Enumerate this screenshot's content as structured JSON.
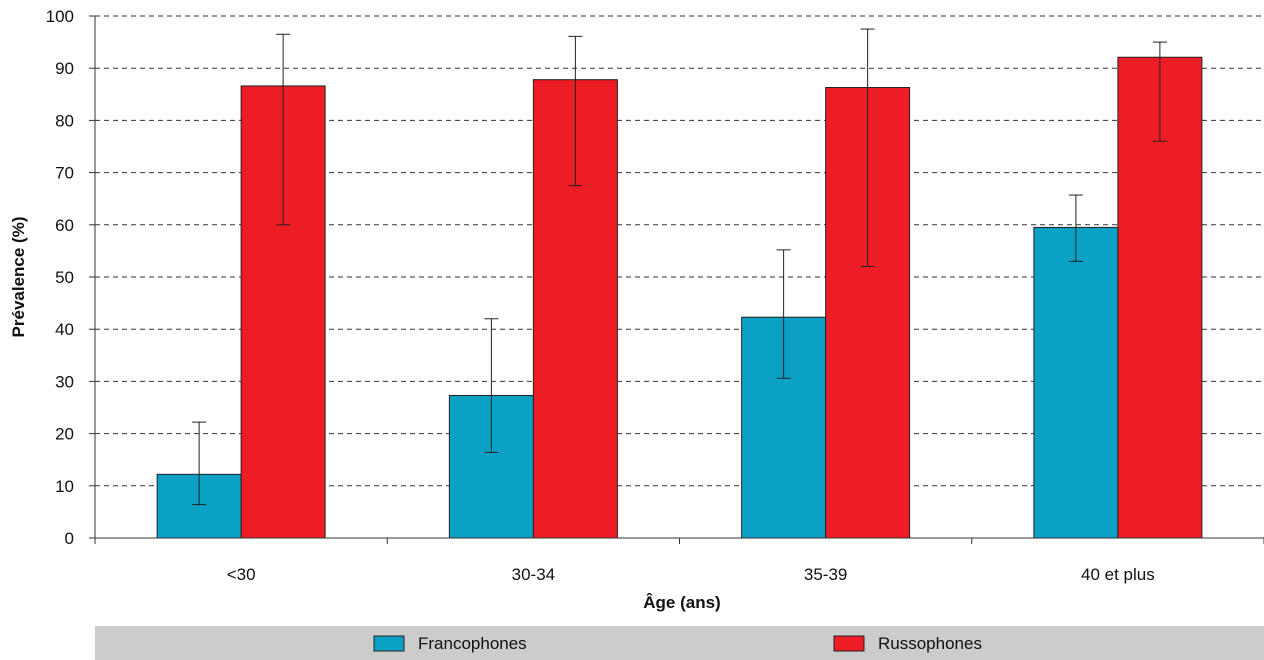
{
  "chart_data": {
    "type": "bar",
    "categories": [
      "<30",
      "30-34",
      "35-39",
      "40 et plus"
    ],
    "series": [
      {
        "name": "Francophones",
        "values": [
          12.2,
          27.3,
          42.3,
          59.5
        ],
        "error_low": [
          6.4,
          16.4,
          30.6,
          53.0
        ],
        "error_high": [
          22.2,
          42.0,
          55.2,
          65.7
        ]
      },
      {
        "name": "Russophones",
        "values": [
          86.6,
          87.8,
          86.3,
          92.1
        ],
        "error_low": [
          60.0,
          67.5,
          52.0,
          76.0
        ],
        "error_high": [
          96.5,
          96.1,
          97.5,
          95.0
        ]
      }
    ],
    "xlabel": "Âge (ans)",
    "ylabel": "Prévalence (%)",
    "ylim": [
      0,
      100
    ],
    "yticks": [
      0,
      10,
      20,
      30,
      40,
      50,
      60,
      70,
      80,
      90,
      100
    ],
    "grid": "horizontal-dashed",
    "legend_position": "bottom",
    "colors": {
      "Francophones": "#0aa1c5",
      "Russophones": "#ee1c25",
      "legend_band": "#cccccc"
    }
  }
}
